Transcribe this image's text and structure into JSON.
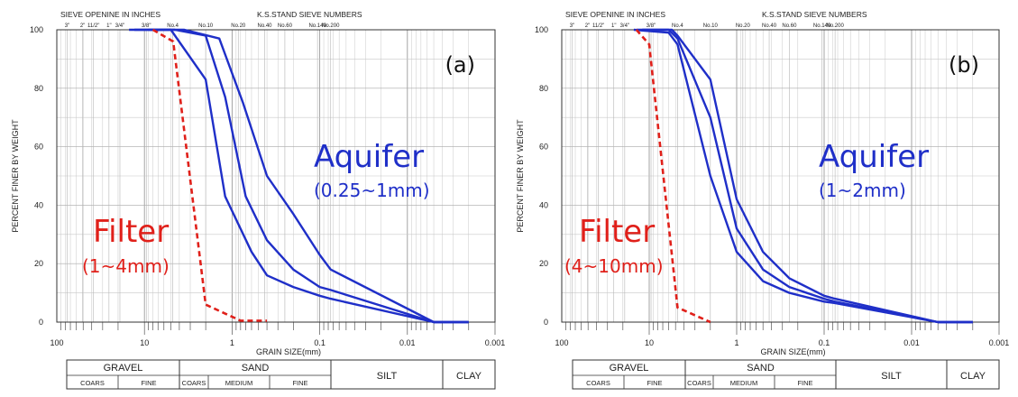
{
  "colors": {
    "aquifer": "#1f2fc8",
    "filter": "#e0201a",
    "grid": "#c8c8c8",
    "frame": "#333333"
  },
  "chart_data": [
    {
      "type": "line",
      "panel_label": "(a)",
      "x_scale": "log",
      "x_reversed": true,
      "xlim": [
        100,
        0.001
      ],
      "ylim": [
        0,
        100
      ],
      "xlabel": "GRAIN SIZE(mm)",
      "ylabel": "PERCENT FINER BY WEIGHT",
      "top_label_left": "SIEVE OPENINE IN INCHES",
      "top_label_right": "K.S.STAND SIEVE NUMBERS",
      "inch_labels": [
        {
          "label": "3\"",
          "x": 76.2
        },
        {
          "label": "2\"",
          "x": 50.8
        },
        {
          "label": "11/2\"",
          "x": 38.1
        },
        {
          "label": "1\"",
          "x": 25.4
        },
        {
          "label": "3/4\"",
          "x": 19.05
        },
        {
          "label": "3/8\"",
          "x": 9.525
        }
      ],
      "sieve_labels": [
        {
          "label": "No.4",
          "x": 4.75
        },
        {
          "label": "No.10",
          "x": 2.0
        },
        {
          "label": "No.20",
          "x": 0.85
        },
        {
          "label": "No.40",
          "x": 0.425
        },
        {
          "label": "No.60",
          "x": 0.25
        },
        {
          "label": "No.140",
          "x": 0.106
        },
        {
          "label": "No.200",
          "x": 0.075
        }
      ],
      "xticks": [
        {
          "v": 100,
          "label": "100"
        },
        {
          "v": 10,
          "label": "10"
        },
        {
          "v": 1,
          "label": "1"
        },
        {
          "v": 0.1,
          "label": "0.1"
        },
        {
          "v": 0.01,
          "label": "0.01"
        },
        {
          "v": 0.001,
          "label": "0.001"
        }
      ],
      "yticks": [
        {
          "v": 0,
          "label": "0"
        },
        {
          "v": 20,
          "label": "20"
        },
        {
          "v": 40,
          "label": "40"
        },
        {
          "v": 60,
          "label": "60"
        },
        {
          "v": 80,
          "label": "80"
        },
        {
          "v": 100,
          "label": "100"
        }
      ],
      "annotations": {
        "aquifer_title": "Aquifer",
        "aquifer_range": "(0.25~1mm)",
        "filter_title": "Filter",
        "filter_range": "(1~4mm)"
      },
      "series": [
        {
          "kind": "aquifer",
          "x": [
            15,
            5,
            2.0,
            1.2,
            0.6,
            0.4,
            0.2,
            0.1,
            0.075,
            0.005,
            0.002
          ],
          "y": [
            100,
            100,
            83,
            43,
            24,
            16,
            12,
            9,
            8,
            0,
            0
          ]
        },
        {
          "kind": "aquifer",
          "x": [
            13,
            4.5,
            2.0,
            1.2,
            0.7,
            0.4,
            0.2,
            0.1,
            0.075,
            0.005,
            0.002
          ],
          "y": [
            100,
            100,
            98,
            77,
            43,
            28,
            18,
            12,
            11,
            0,
            0
          ]
        },
        {
          "kind": "aquifer",
          "x": [
            9,
            3.5,
            1.4,
            0.75,
            0.4,
            0.2,
            0.1,
            0.075,
            0.005,
            0.002
          ],
          "y": [
            100,
            100,
            97,
            75,
            50,
            37,
            23,
            18,
            0,
            0
          ]
        },
        {
          "kind": "filter",
          "x": [
            8,
            4.7,
            2.0,
            0.8,
            0.4
          ],
          "y": [
            100,
            96,
            6,
            0.5,
            0.5
          ]
        }
      ]
    },
    {
      "type": "line",
      "panel_label": "(b)",
      "x_scale": "log",
      "x_reversed": true,
      "xlim": [
        100,
        0.001
      ],
      "ylim": [
        0,
        100
      ],
      "xlabel": "GRAIN SIZE(mm)",
      "ylabel": "PERCENT FINER BY WEIGHT",
      "top_label_left": "SIEVE OPENINE IN INCHES",
      "top_label_right": "K.S.STAND SIEVE NUMBERS",
      "inch_labels": [
        {
          "label": "3\"",
          "x": 76.2
        },
        {
          "label": "2\"",
          "x": 50.8
        },
        {
          "label": "11/2\"",
          "x": 38.1
        },
        {
          "label": "1\"",
          "x": 25.4
        },
        {
          "label": "3/4\"",
          "x": 19.05
        },
        {
          "label": "3/8\"",
          "x": 9.525
        }
      ],
      "sieve_labels": [
        {
          "label": "No.4",
          "x": 4.75
        },
        {
          "label": "No.10",
          "x": 2.0
        },
        {
          "label": "No.20",
          "x": 0.85
        },
        {
          "label": "No.40",
          "x": 0.425
        },
        {
          "label": "No.60",
          "x": 0.25
        },
        {
          "label": "No.140",
          "x": 0.106
        },
        {
          "label": "No.200",
          "x": 0.075
        }
      ],
      "xticks": [
        {
          "v": 100,
          "label": "100"
        },
        {
          "v": 10,
          "label": "10"
        },
        {
          "v": 1,
          "label": "1"
        },
        {
          "v": 0.1,
          "label": "0.1"
        },
        {
          "v": 0.01,
          "label": "0.01"
        },
        {
          "v": 0.001,
          "label": "0.001"
        }
      ],
      "yticks": [
        {
          "v": 0,
          "label": "0"
        },
        {
          "v": 20,
          "label": "20"
        },
        {
          "v": 40,
          "label": "40"
        },
        {
          "v": 60,
          "label": "60"
        },
        {
          "v": 80,
          "label": "80"
        },
        {
          "v": 100,
          "label": "100"
        }
      ],
      "annotations": {
        "aquifer_title": "Aquifer",
        "aquifer_range": "(1~2mm)",
        "filter_title": "Filter",
        "filter_range": "(4~10mm)"
      },
      "series": [
        {
          "kind": "aquifer",
          "x": [
            15,
            6,
            4.75,
            2.0,
            1.0,
            0.5,
            0.25,
            0.1,
            0.075,
            0.005,
            0.002
          ],
          "y": [
            100,
            99,
            95,
            50,
            24,
            14,
            10,
            7,
            6.5,
            0,
            0
          ]
        },
        {
          "kind": "aquifer",
          "x": [
            14,
            6,
            4.75,
            2.0,
            1.0,
            0.5,
            0.25,
            0.1,
            0.075,
            0.005,
            0.002
          ],
          "y": [
            100,
            100,
            97,
            70,
            32,
            18,
            12,
            8,
            7,
            0,
            0
          ]
        },
        {
          "kind": "aquifer",
          "x": [
            12,
            5.5,
            4.75,
            2.0,
            1.0,
            0.5,
            0.25,
            0.1,
            0.075,
            0.005,
            0.002
          ],
          "y": [
            100,
            100,
            98,
            83,
            42,
            24,
            15,
            9,
            8,
            0,
            0
          ]
        },
        {
          "kind": "filter",
          "x": [
            14,
            10,
            4.75,
            2.0
          ],
          "y": [
            100,
            95,
            5,
            0
          ]
        }
      ]
    }
  ],
  "soil_tables": [
    {
      "classes": [
        "GRAVEL",
        "SAND",
        "SILT",
        "CLAY"
      ],
      "subclasses": [
        "COARS",
        "FINE",
        "COARS",
        "MEDIUM",
        "FINE"
      ]
    },
    {
      "classes": [
        "GRAVEL",
        "SAND",
        "SILT",
        "CLAY"
      ],
      "subclasses": [
        "COARS",
        "FINE",
        "COARS",
        "MEDIUM",
        "FINE"
      ]
    }
  ]
}
